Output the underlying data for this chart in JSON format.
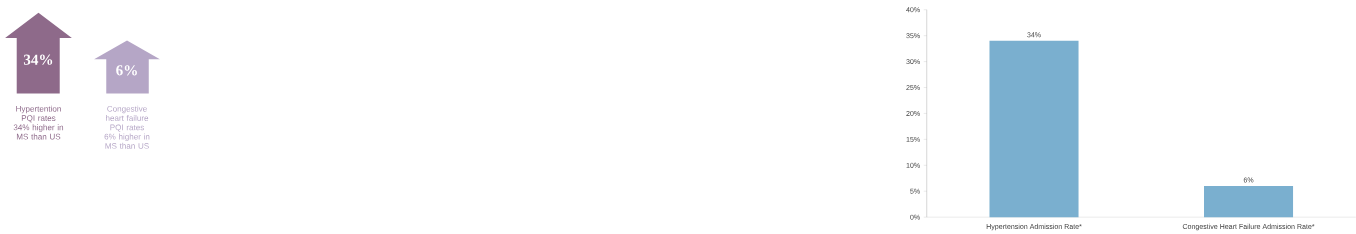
{
  "chart_data": [
    {
      "type": "other",
      "annotations": [
        "34%",
        "Hypertention PQI rates 34% higher in MS than US",
        "6%",
        "Congestive heart failure PQI rates 6% higher in MS than US"
      ]
    },
    {
      "type": "bar",
      "categories": [
        "Hypertension Admission Rate*",
        "Congestive Heart Failure Admission Rate*"
      ],
      "values": [
        34,
        6
      ],
      "color": "#7aafcf",
      "value_labels": [
        "34%",
        "6%"
      ],
      "ylim": [
        0,
        40
      ],
      "yticks": [
        {
          "value": 0,
          "label": "0%"
        },
        {
          "value": 5,
          "label": "5%"
        },
        {
          "value": 10,
          "label": "10%"
        },
        {
          "value": 15,
          "label": "15%"
        },
        {
          "value": 20,
          "label": "20%"
        },
        {
          "value": 25,
          "label": "25%"
        },
        {
          "value": 30,
          "label": "30%"
        },
        {
          "value": 35,
          "label": "35%"
        },
        {
          "value": 40,
          "label": "40%"
        }
      ]
    }
  ]
}
